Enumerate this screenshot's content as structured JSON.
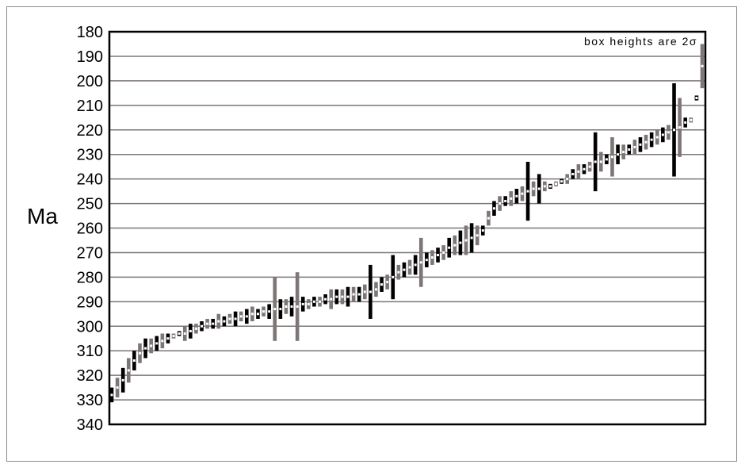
{
  "chart_data": {
    "type": "bar",
    "subtype": "error-box ranked age plot",
    "title": "",
    "ylabel": "Ma",
    "xlabel": "",
    "annotation": "box heights are 2σ",
    "ylim": [
      340,
      180
    ],
    "y_inverted": true,
    "yticks": [
      180,
      190,
      200,
      210,
      220,
      230,
      240,
      250,
      260,
      270,
      280,
      290,
      300,
      310,
      320,
      330,
      340
    ],
    "grid": true,
    "colors": {
      "dark": "#000000",
      "light": "#7d7676",
      "center": "#ffffff"
    },
    "ages": [
      328,
      325,
      322,
      318,
      314,
      311,
      309,
      308,
      307,
      306,
      305,
      304,
      303,
      303,
      302,
      301,
      300,
      299,
      299,
      298,
      298,
      297,
      297,
      296,
      296,
      295,
      295,
      294,
      294,
      293,
      293,
      292,
      292,
      292,
      291,
      291,
      290,
      290,
      289,
      289,
      288,
      288,
      288,
      287,
      287,
      286,
      286,
      285,
      283,
      282,
      280,
      278,
      277,
      276,
      275,
      274,
      273,
      272,
      271,
      270,
      268,
      267,
      266,
      265,
      264,
      263,
      261,
      256,
      252,
      250,
      249,
      248,
      247,
      246,
      245,
      244,
      244,
      243,
      243,
      242,
      241,
      240,
      238,
      237,
      236,
      235,
      233,
      233,
      232,
      231,
      230,
      229,
      228,
      227,
      226,
      225,
      224,
      223,
      222,
      221,
      220,
      219,
      217,
      216,
      207,
      194
    ],
    "two_sigma": [
      3,
      4,
      5,
      5,
      4,
      4,
      4,
      3,
      3,
      3,
      2,
      1,
      1,
      3,
      3,
      2,
      2,
      2,
      2,
      3,
      2,
      2,
      3,
      2,
      3,
      3,
      2,
      2,
      3,
      13,
      4,
      3,
      4,
      14,
      3,
      2,
      2,
      2,
      2,
      4,
      3,
      3,
      4,
      3,
      3,
      3,
      11,
      3,
      3,
      3,
      9,
      3,
      3,
      3,
      4,
      10,
      3,
      3,
      3,
      3,
      4,
      4,
      5,
      6,
      6,
      4,
      2,
      3,
      3,
      3,
      2,
      3,
      3,
      3,
      12,
      3,
      6,
      2,
      1,
      1,
      1,
      2,
      2,
      3,
      2,
      2,
      12,
      4,
      2,
      8,
      4,
      3,
      2,
      3,
      3,
      3,
      3,
      3,
      3,
      3,
      19,
      12,
      2,
      1,
      1,
      9
    ]
  }
}
